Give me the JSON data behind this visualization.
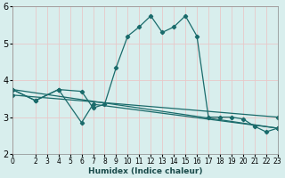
{
  "xlabel": "Humidex (Indice chaleur)",
  "xlim": [
    0,
    23
  ],
  "ylim": [
    2,
    6
  ],
  "yticks": [
    2,
    3,
    4,
    5,
    6
  ],
  "xticks": [
    0,
    2,
    3,
    4,
    5,
    6,
    7,
    8,
    9,
    10,
    11,
    12,
    13,
    14,
    15,
    16,
    17,
    18,
    19,
    20,
    21,
    22,
    23
  ],
  "bg_color": "#d8eeed",
  "grid_color": "#e8c8c8",
  "line_color": "#1a6b6b",
  "lines": [
    {
      "x": [
        0,
        2,
        4,
        6,
        7,
        8,
        9,
        10,
        11,
        12,
        13,
        14,
        15,
        16,
        17,
        18,
        19,
        20,
        21,
        22,
        23
      ],
      "y": [
        3.75,
        3.45,
        3.75,
        3.7,
        3.25,
        3.35,
        4.35,
        5.2,
        5.45,
        5.75,
        5.3,
        5.45,
        5.75,
        5.2,
        3.0,
        3.0,
        3.0,
        2.95,
        2.75,
        2.6,
        2.7
      ]
    },
    {
      "x": [
        0,
        2,
        4,
        6,
        7,
        23
      ],
      "y": [
        3.75,
        3.45,
        3.75,
        2.85,
        3.35,
        2.7
      ]
    },
    {
      "x": [
        0,
        23
      ],
      "y": [
        3.75,
        2.7
      ]
    },
    {
      "x": [
        0,
        23
      ],
      "y": [
        3.6,
        3.0
      ]
    }
  ]
}
